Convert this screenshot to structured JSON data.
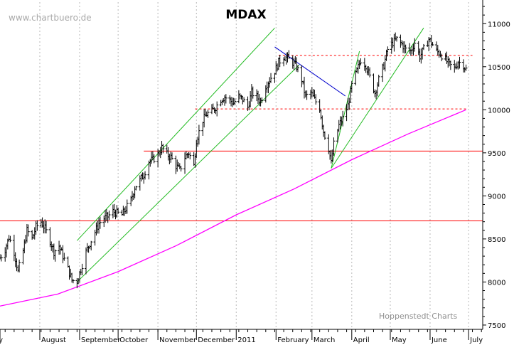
{
  "chart_data": {
    "type": "ohlc",
    "title": "MDAX",
    "watermark": "www.chartbuero.de",
    "source": "Hoppenstedt Charts",
    "y_axis": {
      "ticks": [
        7500,
        8000,
        8500,
        9000,
        9500,
        10000,
        10500,
        11000
      ],
      "ylim": [
        7450,
        11250
      ],
      "position": "right"
    },
    "x_axis": {
      "month_labels": [
        "July",
        "August",
        "September",
        "October",
        "November",
        "December",
        "2011",
        "February",
        "March",
        "April",
        "May",
        "June",
        "July"
      ]
    },
    "grid": "vertical dotted lines at month starts",
    "price_path": [
      [
        "2010-07-01",
        8280
      ],
      [
        "2010-07-05",
        8380
      ],
      [
        "2010-07-08",
        8520
      ],
      [
        "2010-07-12",
        8350
      ],
      [
        "2010-07-15",
        8120
      ],
      [
        "2010-07-19",
        8360
      ],
      [
        "2010-07-22",
        8600
      ],
      [
        "2010-07-26",
        8500
      ],
      [
        "2010-07-29",
        8640
      ],
      [
        "2010-08-02",
        8700
      ],
      [
        "2010-08-05",
        8620
      ],
      [
        "2010-08-09",
        8480
      ],
      [
        "2010-08-12",
        8350
      ],
      [
        "2010-08-16",
        8420
      ],
      [
        "2010-08-19",
        8300
      ],
      [
        "2010-08-23",
        8150
      ],
      [
        "2010-08-26",
        8020
      ],
      [
        "2010-08-30",
        8010
      ],
      [
        "2010-09-02",
        8150
      ],
      [
        "2010-09-06",
        8350
      ],
      [
        "2010-09-09",
        8450
      ],
      [
        "2010-09-13",
        8580
      ],
      [
        "2010-09-16",
        8680
      ],
      [
        "2010-09-20",
        8740
      ],
      [
        "2010-09-23",
        8760
      ],
      [
        "2010-09-27",
        8820
      ],
      [
        "2010-09-30",
        8800
      ],
      [
        "2010-10-04",
        8780
      ],
      [
        "2010-10-07",
        8850
      ],
      [
        "2010-10-11",
        8950
      ],
      [
        "2010-10-14",
        9100
      ],
      [
        "2010-10-18",
        9180
      ],
      [
        "2010-10-21",
        9250
      ],
      [
        "2010-10-25",
        9400
      ],
      [
        "2010-10-28",
        9420
      ],
      [
        "2010-11-01",
        9480
      ],
      [
        "2010-11-04",
        9560
      ],
      [
        "2010-11-08",
        9480
      ],
      [
        "2010-11-11",
        9450
      ],
      [
        "2010-11-15",
        9350
      ],
      [
        "2010-11-18",
        9300
      ],
      [
        "2010-11-22",
        9450
      ],
      [
        "2010-11-25",
        9500
      ],
      [
        "2010-11-29",
        9350
      ],
      [
        "2010-12-01",
        9650
      ],
      [
        "2010-12-06",
        9880
      ],
      [
        "2010-12-09",
        9950
      ],
      [
        "2010-12-13",
        9980
      ],
      [
        "2010-12-16",
        10030
      ],
      [
        "2010-12-20",
        10120
      ],
      [
        "2010-12-23",
        10150
      ],
      [
        "2010-12-30",
        10080
      ],
      [
        "2011-01-03",
        10150
      ],
      [
        "2011-01-06",
        10120
      ],
      [
        "2011-01-10",
        10030
      ],
      [
        "2011-01-13",
        10200
      ],
      [
        "2011-01-17",
        10150
      ],
      [
        "2011-01-20",
        10100
      ],
      [
        "2011-01-24",
        10280
      ],
      [
        "2011-01-27",
        10350
      ],
      [
        "2011-01-31",
        10450
      ],
      [
        "2011-02-03",
        10550
      ],
      [
        "2011-02-07",
        10620
      ],
      [
        "2011-02-10",
        10600
      ],
      [
        "2011-02-14",
        10550
      ],
      [
        "2011-02-17",
        10500
      ],
      [
        "2011-02-21",
        10350
      ],
      [
        "2011-02-24",
        10150
      ],
      [
        "2011-02-28",
        10200
      ],
      [
        "2011-03-03",
        10120
      ],
      [
        "2011-03-07",
        10020
      ],
      [
        "2011-03-10",
        9750
      ],
      [
        "2011-03-14",
        9550
      ],
      [
        "2011-03-16",
        9380
      ],
      [
        "2011-03-18",
        9600
      ],
      [
        "2011-03-22",
        9820
      ],
      [
        "2011-03-25",
        9900
      ],
      [
        "2011-03-29",
        10050
      ],
      [
        "2011-04-01",
        10280
      ],
      [
        "2011-04-05",
        10450
      ],
      [
        "2011-04-08",
        10580
      ],
      [
        "2011-04-12",
        10520
      ],
      [
        "2011-04-15",
        10380
      ],
      [
        "2011-04-19",
        10200
      ],
      [
        "2011-04-22",
        10350
      ],
      [
        "2011-04-26",
        10520
      ],
      [
        "2011-04-29",
        10700
      ],
      [
        "2011-05-03",
        10780
      ],
      [
        "2011-05-06",
        10820
      ],
      [
        "2011-05-10",
        10760
      ],
      [
        "2011-05-13",
        10700
      ],
      [
        "2011-05-17",
        10680
      ],
      [
        "2011-05-20",
        10780
      ],
      [
        "2011-05-24",
        10620
      ],
      [
        "2011-05-27",
        10700
      ],
      [
        "2011-05-31",
        10820
      ],
      [
        "2011-06-02",
        10780
      ],
      [
        "2011-06-06",
        10680
      ],
      [
        "2011-06-09",
        10650
      ],
      [
        "2011-06-13",
        10580
      ],
      [
        "2011-06-16",
        10520
      ],
      [
        "2011-06-20",
        10480
      ],
      [
        "2011-06-23",
        10560
      ],
      [
        "2011-06-27",
        10520
      ],
      [
        "2011-06-29",
        10470
      ]
    ],
    "moving_average": {
      "color": "#ff00ff",
      "points": [
        [
          "2010-07-01",
          7720
        ],
        [
          "2010-08-15",
          7860
        ],
        [
          "2010-10-01",
          8120
        ],
        [
          "2010-11-15",
          8420
        ],
        [
          "2011-01-01",
          8780
        ],
        [
          "2011-02-15",
          9080
        ],
        [
          "2011-04-01",
          9420
        ],
        [
          "2011-05-15",
          9720
        ],
        [
          "2011-06-29",
          10000
        ]
      ]
    },
    "horizontal_lines": [
      {
        "value": 8710,
        "style": "solid",
        "color": "#ff0000",
        "from": "2010-07-01",
        "to": "2011-07-12"
      },
      {
        "value": 9520,
        "style": "solid",
        "color": "#ff0000",
        "from": "2010-10-21",
        "to": "2011-07-12"
      },
      {
        "value": 10010,
        "style": "dashed",
        "color": "#ff0000",
        "from": "2010-11-30",
        "to": "2011-06-29"
      },
      {
        "value": 10630,
        "style": "dashed",
        "color": "#ff0000",
        "from": "2011-02-03",
        "to": "2011-07-04"
      }
    ],
    "trend_lines": [
      {
        "color": "#22bb22",
        "from": [
          "2010-08-30",
          8480
        ],
        "to": [
          "2011-01-31",
          10950
        ]
      },
      {
        "color": "#22bb22",
        "from": [
          "2010-08-30",
          8000
        ],
        "to": [
          "2011-02-19",
          10520
        ]
      },
      {
        "color": "#22bb22",
        "from": [
          "2011-03-16",
          9320
        ],
        "to": [
          "2011-04-07",
          10680
        ]
      },
      {
        "color": "#22bb22",
        "from": [
          "2011-03-16",
          9320
        ],
        "to": [
          "2011-05-27",
          10950
        ]
      },
      {
        "color": "#0000cc",
        "from": [
          "2011-01-31",
          10730
        ],
        "to": [
          "2011-03-27",
          10160
        ]
      }
    ]
  }
}
